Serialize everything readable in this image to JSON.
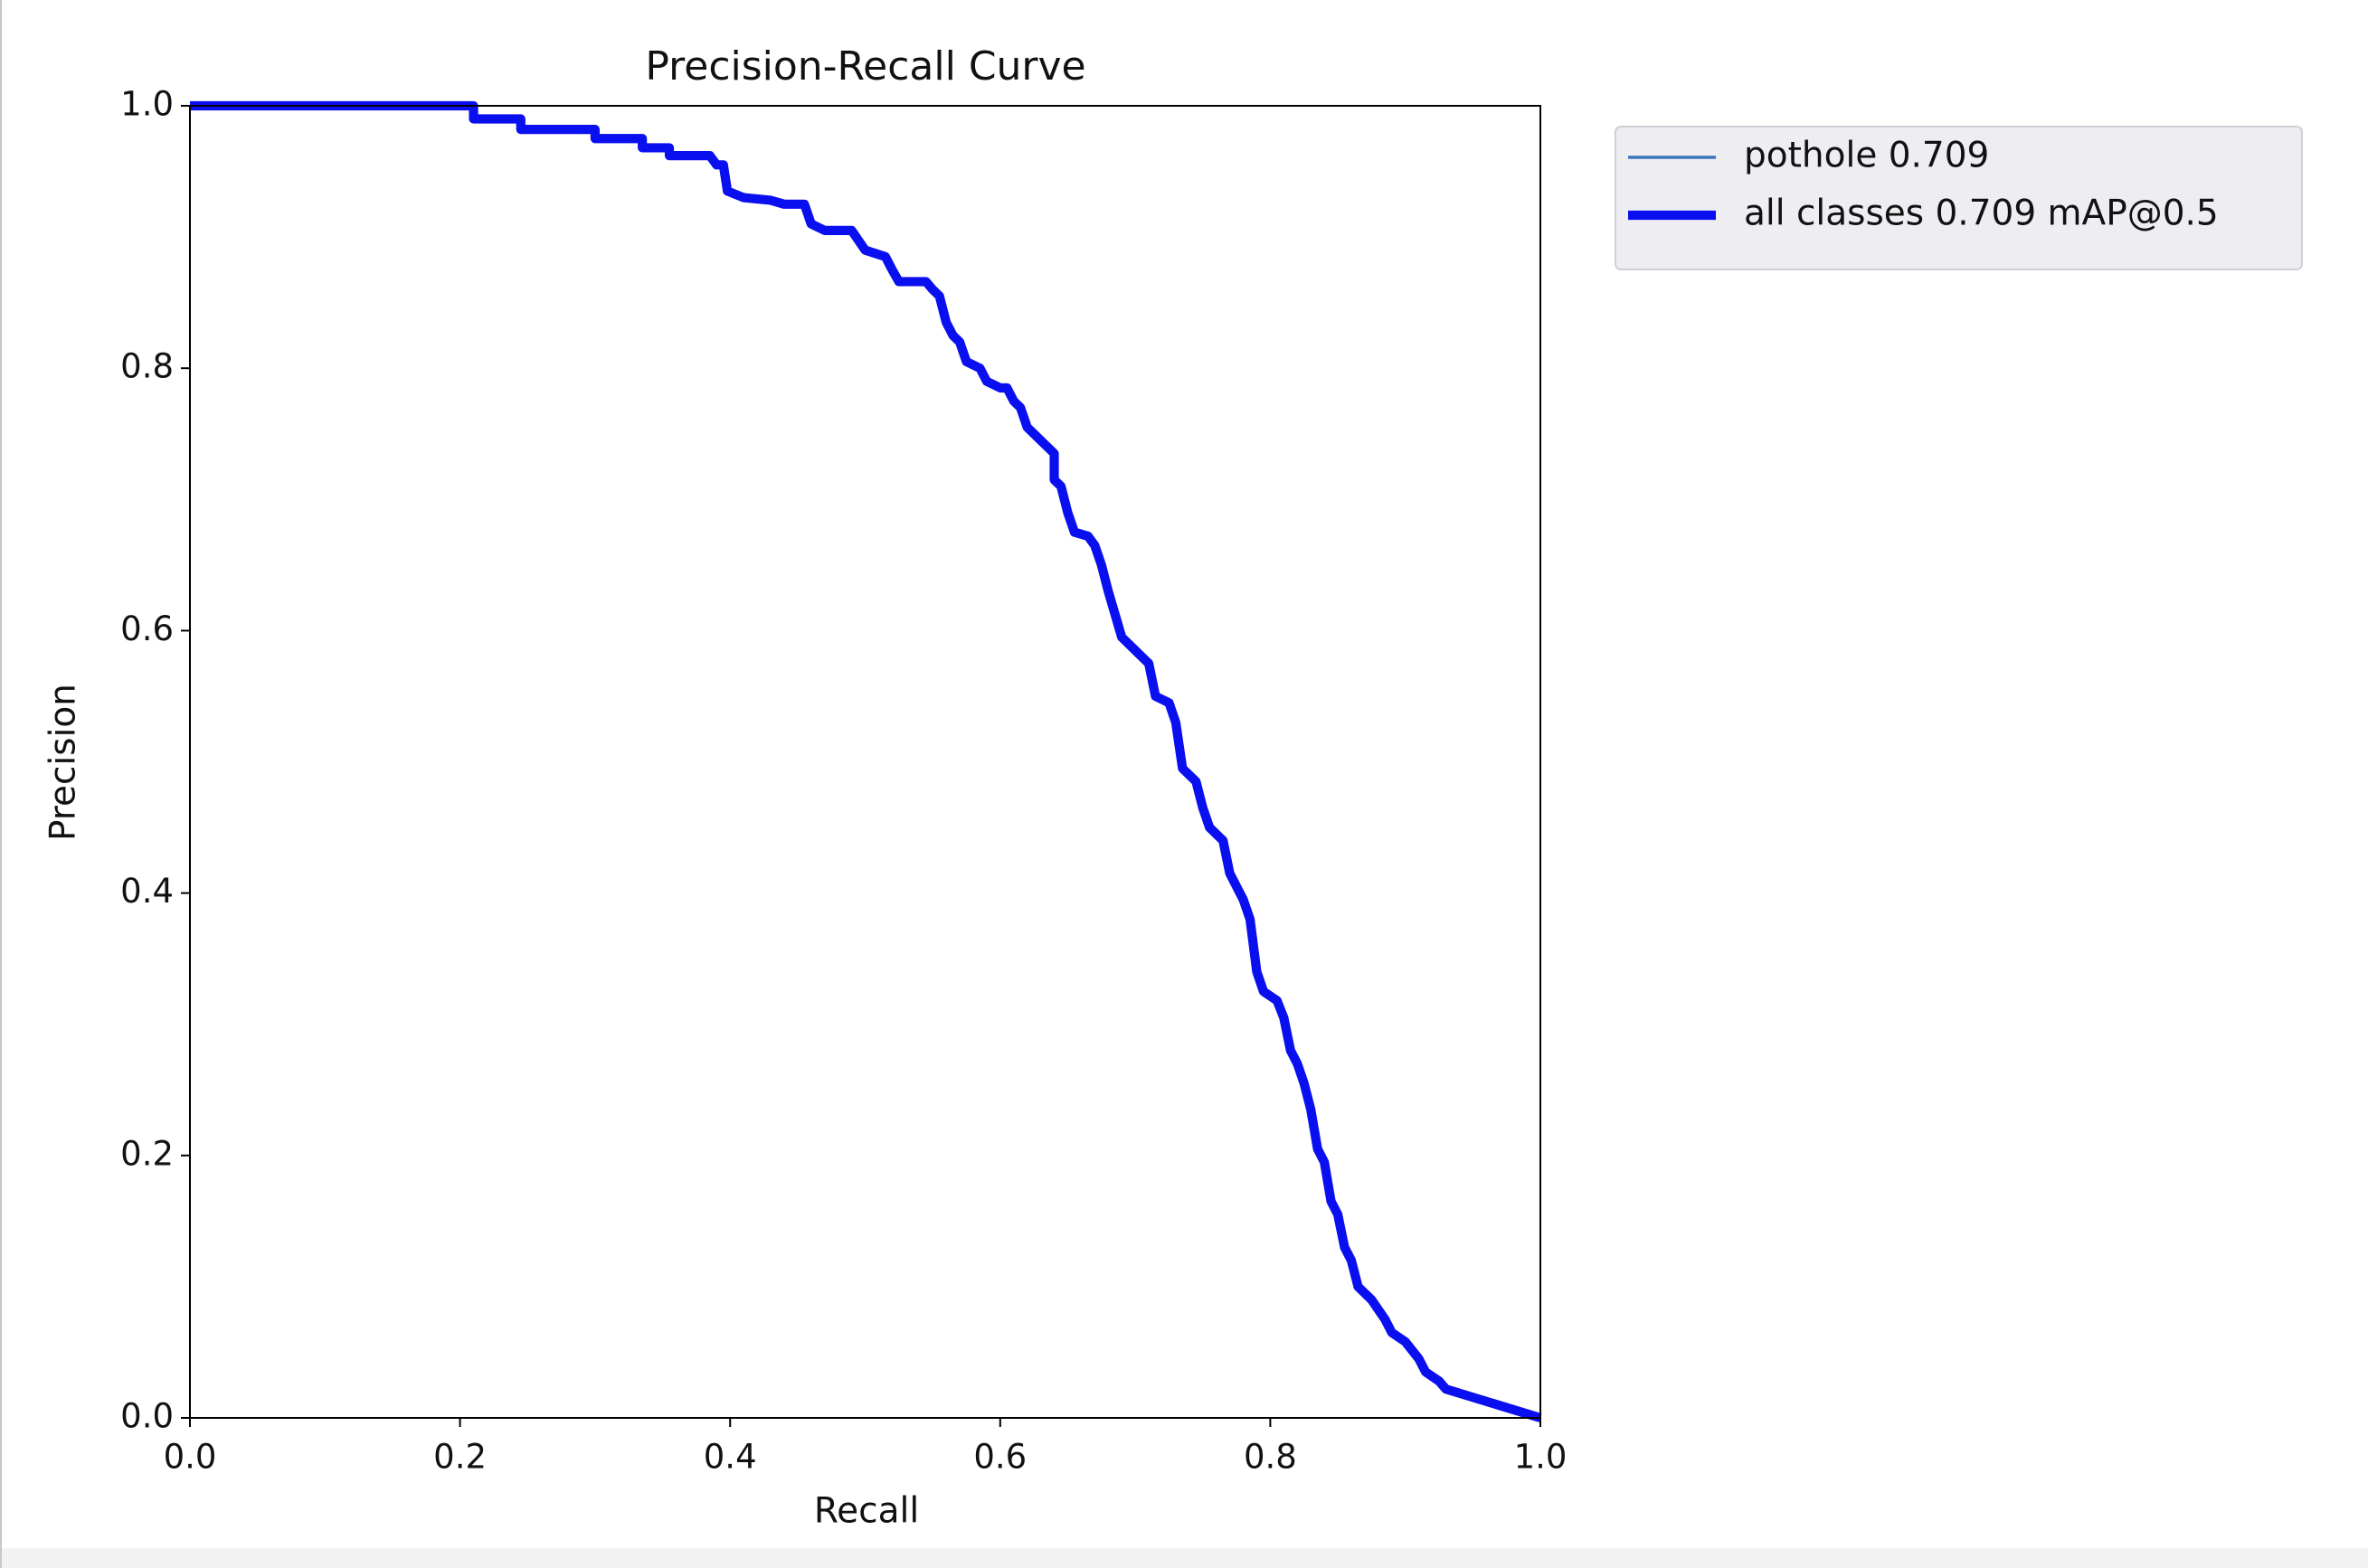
{
  "chart_data": {
    "type": "line",
    "title": "Precision-Recall Curve",
    "x_label": "Recall",
    "y_label": "Precision",
    "x": [
      0,
      0.21,
      0.21,
      0.245,
      0.245,
      0.3,
      0.3,
      0.335,
      0.335,
      0.355,
      0.355,
      0.385,
      0.39,
      0.395,
      0.398,
      0.41,
      0.43,
      0.44,
      0.455,
      0.46,
      0.47,
      0.49,
      0.5,
      0.515,
      0.52,
      0.525,
      0.545,
      0.55,
      0.555,
      0.56,
      0.565,
      0.57,
      0.575,
      0.585,
      0.59,
      0.6,
      0.605,
      0.61,
      0.615,
      0.62,
      0.63,
      0.635,
      0.64,
      0.64,
      0.645,
      0.65,
      0.655,
      0.665,
      0.67,
      0.675,
      0.68,
      0.69,
      0.7,
      0.71,
      0.715,
      0.725,
      0.73,
      0.735,
      0.745,
      0.75,
      0.755,
      0.765,
      0.77,
      0.78,
      0.785,
      0.79,
      0.795,
      0.805,
      0.81,
      0.815,
      0.82,
      0.825,
      0.83,
      0.835,
      0.84,
      0.845,
      0.85,
      0.855,
      0.86,
      0.865,
      0.875,
      0.885,
      0.89,
      0.9,
      0.91,
      0.915,
      0.925,
      0.93,
      1.0
    ],
    "series": [
      {
        "name": "pothole 0.709",
        "color": "#3b75bd",
        "linewidth": 1,
        "values": [
          1.0,
          1.0,
          0.99,
          0.99,
          0.982,
          0.982,
          0.975,
          0.975,
          0.968,
          0.968,
          0.962,
          0.962,
          0.955,
          0.955,
          0.935,
          0.93,
          0.928,
          0.925,
          0.925,
          0.91,
          0.905,
          0.905,
          0.89,
          0.885,
          0.875,
          0.866,
          0.866,
          0.86,
          0.855,
          0.835,
          0.825,
          0.82,
          0.805,
          0.8,
          0.79,
          0.785,
          0.785,
          0.775,
          0.77,
          0.755,
          0.745,
          0.74,
          0.735,
          0.715,
          0.71,
          0.69,
          0.675,
          0.672,
          0.665,
          0.65,
          0.63,
          0.595,
          0.585,
          0.575,
          0.55,
          0.545,
          0.53,
          0.495,
          0.485,
          0.465,
          0.45,
          0.44,
          0.415,
          0.395,
          0.38,
          0.34,
          0.325,
          0.318,
          0.305,
          0.28,
          0.27,
          0.255,
          0.235,
          0.205,
          0.195,
          0.165,
          0.155,
          0.13,
          0.12,
          0.1,
          0.09,
          0.075,
          0.065,
          0.058,
          0.045,
          0.035,
          0.028,
          0.022,
          0.0
        ]
      },
      {
        "name": "all classes 0.709 mAP@0.5",
        "color": "#0a0ff0",
        "linewidth": 3,
        "values": [
          1.0,
          1.0,
          0.99,
          0.99,
          0.982,
          0.982,
          0.975,
          0.975,
          0.968,
          0.968,
          0.962,
          0.962,
          0.955,
          0.955,
          0.935,
          0.93,
          0.928,
          0.925,
          0.925,
          0.91,
          0.905,
          0.905,
          0.89,
          0.885,
          0.875,
          0.866,
          0.866,
          0.86,
          0.855,
          0.835,
          0.825,
          0.82,
          0.805,
          0.8,
          0.79,
          0.785,
          0.785,
          0.775,
          0.77,
          0.755,
          0.745,
          0.74,
          0.735,
          0.715,
          0.71,
          0.69,
          0.675,
          0.672,
          0.665,
          0.65,
          0.63,
          0.595,
          0.585,
          0.575,
          0.55,
          0.545,
          0.53,
          0.495,
          0.485,
          0.465,
          0.45,
          0.44,
          0.415,
          0.395,
          0.38,
          0.34,
          0.325,
          0.318,
          0.305,
          0.28,
          0.27,
          0.255,
          0.235,
          0.205,
          0.195,
          0.165,
          0.155,
          0.13,
          0.12,
          0.1,
          0.09,
          0.075,
          0.065,
          0.058,
          0.045,
          0.035,
          0.028,
          0.022,
          0.0
        ]
      }
    ],
    "xlim": [
      0,
      1
    ],
    "ylim": [
      0,
      1
    ],
    "xticks": [
      {
        "value": 0,
        "label": "0.0"
      },
      0.2,
      0.4,
      0.6,
      0.8,
      {
        "value": 1,
        "label": "1.0"
      }
    ],
    "yticks": [
      {
        "value": 0,
        "label": "0.0"
      },
      0.2,
      0.4,
      0.6,
      0.8,
      {
        "value": 1,
        "label": "1.0"
      }
    ],
    "grid": false,
    "legend": "outside upper right"
  }
}
